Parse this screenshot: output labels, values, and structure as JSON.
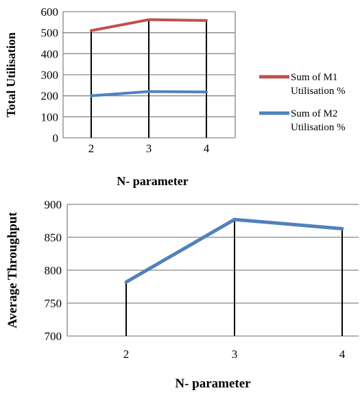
{
  "chart_data": [
    {
      "type": "line",
      "categories": [
        "2",
        "3",
        "4"
      ],
      "series": [
        {
          "name": "Sum of M1 Utilisation %",
          "values": [
            510,
            562,
            558
          ],
          "color": "#c0504d"
        },
        {
          "name": "Sum of M2 Utilisation %",
          "values": [
            200,
            220,
            218
          ],
          "color": "#4f81bd"
        }
      ],
      "xlabel": "N- parameter",
      "ylabel": "Total Utilisation",
      "ylim": [
        0,
        600
      ],
      "yticks": [
        "0",
        "100",
        "200",
        "300",
        "400",
        "500",
        "600"
      ],
      "grid": true,
      "legend": "right"
    },
    {
      "type": "line",
      "categories": [
        "2",
        "3",
        "4"
      ],
      "series": [
        {
          "values": [
            782,
            877,
            863
          ],
          "color": "#4f81bd"
        }
      ],
      "xlabel": "N- parameter",
      "ylabel": "Average Throughput",
      "ylim": [
        700,
        900
      ],
      "yticks": [
        "700",
        "750",
        "800",
        "850",
        "900"
      ],
      "grid": true,
      "legend": "none"
    }
  ]
}
